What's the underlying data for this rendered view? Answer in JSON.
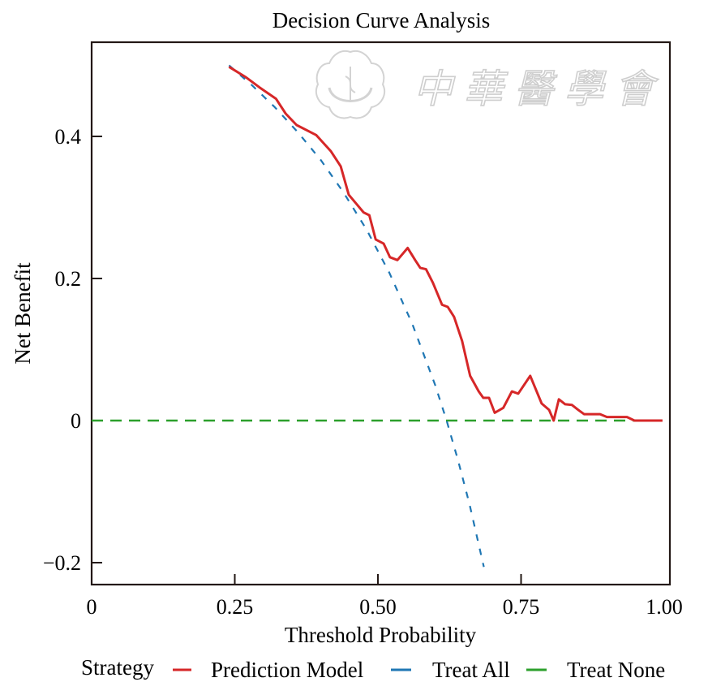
{
  "chart_data": {
    "type": "line",
    "title": "Decision Curve Analysis",
    "xlabel": "Threshold Probability",
    "ylabel": "Net Benefit",
    "xlim": [
      0,
      1.0
    ],
    "ylim": [
      -0.23,
      0.53
    ],
    "grid": false,
    "x_ticks": [
      {
        "value": 0,
        "label": "0"
      },
      {
        "value": 0.25,
        "label": "0.25"
      },
      {
        "value": 0.5,
        "label": "0.50"
      },
      {
        "value": 0.75,
        "label": "0.75"
      },
      {
        "value": 1.0,
        "label": "1.00"
      }
    ],
    "y_ticks": [
      {
        "value": -0.2,
        "label": "−0.2"
      },
      {
        "value": 0,
        "label": "0"
      },
      {
        "value": 0.2,
        "label": "0.2"
      },
      {
        "value": 0.4,
        "label": "0.4"
      }
    ],
    "legend": {
      "title": "Strategy",
      "position": "bottom",
      "entries": [
        {
          "name": "Prediction Model",
          "color": "#d62728"
        },
        {
          "name": "Treat All",
          "color": "#1f77b4"
        },
        {
          "name": "Treat None",
          "color": "#2ca02c"
        }
      ]
    },
    "series": [
      {
        "name": "Prediction Model",
        "color": "#d62728",
        "style": "solid",
        "points": [
          [
            0.24,
            0.498
          ],
          [
            0.27,
            0.483
          ],
          [
            0.293,
            0.469
          ],
          [
            0.322,
            0.453
          ],
          [
            0.339,
            0.432
          ],
          [
            0.358,
            0.416
          ],
          [
            0.392,
            0.402
          ],
          [
            0.418,
            0.379
          ],
          [
            0.435,
            0.358
          ],
          [
            0.449,
            0.318
          ],
          [
            0.475,
            0.293
          ],
          [
            0.485,
            0.289
          ],
          [
            0.496,
            0.255
          ],
          [
            0.51,
            0.249
          ],
          [
            0.521,
            0.23
          ],
          [
            0.534,
            0.226
          ],
          [
            0.552,
            0.243
          ],
          [
            0.565,
            0.226
          ],
          [
            0.574,
            0.215
          ],
          [
            0.584,
            0.213
          ],
          [
            0.596,
            0.194
          ],
          [
            0.612,
            0.163
          ],
          [
            0.622,
            0.16
          ],
          [
            0.633,
            0.146
          ],
          [
            0.647,
            0.112
          ],
          [
            0.661,
            0.063
          ],
          [
            0.676,
            0.041
          ],
          [
            0.684,
            0.032
          ],
          [
            0.694,
            0.032
          ],
          [
            0.704,
            0.011
          ],
          [
            0.719,
            0.018
          ],
          [
            0.734,
            0.041
          ],
          [
            0.745,
            0.038
          ],
          [
            0.766,
            0.063
          ],
          [
            0.786,
            0.024
          ],
          [
            0.799,
            0.015
          ],
          [
            0.807,
            0.0
          ],
          [
            0.816,
            0.03
          ],
          [
            0.827,
            0.023
          ],
          [
            0.839,
            0.022
          ],
          [
            0.85,
            0.015
          ],
          [
            0.86,
            0.009
          ],
          [
            0.888,
            0.009
          ],
          [
            0.9,
            0.005
          ],
          [
            0.935,
            0.005
          ],
          [
            0.948,
            0.0
          ],
          [
            0.997,
            0.0
          ]
        ]
      },
      {
        "name": "Treat All",
        "color": "#1f77b4",
        "style": "dashed",
        "prevalence": 0.62,
        "x_range": [
          0.24,
          0.685
        ],
        "points": [
          [
            0.24,
            0.5
          ],
          [
            0.28,
            0.472
          ],
          [
            0.32,
            0.441
          ],
          [
            0.36,
            0.406
          ],
          [
            0.4,
            0.367
          ],
          [
            0.44,
            0.321
          ],
          [
            0.48,
            0.269
          ],
          [
            0.52,
            0.208
          ],
          [
            0.56,
            0.136
          ],
          [
            0.6,
            0.05
          ],
          [
            0.62,
            0.0
          ],
          [
            0.64,
            -0.056
          ],
          [
            0.66,
            -0.118
          ],
          [
            0.685,
            -0.206
          ]
        ]
      },
      {
        "name": "Treat None",
        "color": "#2ca02c",
        "style": "dashed",
        "points": [
          [
            0.0,
            0.0
          ],
          [
            1.0,
            0.0
          ]
        ]
      }
    ]
  },
  "watermark": {
    "text": "中華醫學會",
    "emblem": "chinese-medical-association-emblem"
  }
}
